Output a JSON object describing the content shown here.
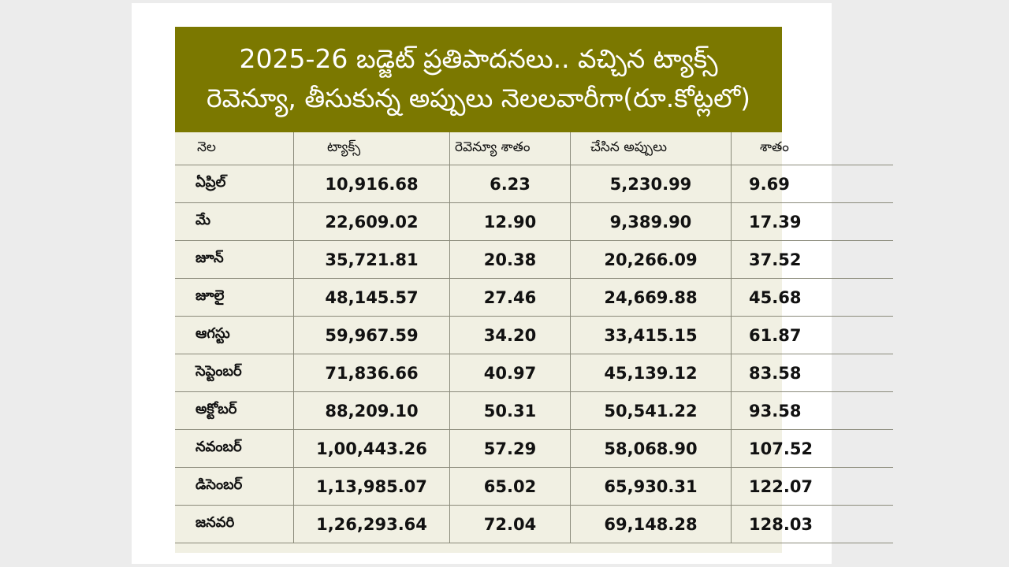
{
  "title": {
    "line1": "2025-26 బడ్జెట్ ప్రతిపాదనలు.. వచ్చిన ట్యాక్స్",
    "line2": "రెవెన్యూ, తీసుకున్న అప్పులు నెలలవారీగా(రూ.కోట్లలో)"
  },
  "headers": {
    "month": "నెల",
    "tax": "ట్యాక్స్",
    "revenue_pct": "రెవెన్యూ శాతం",
    "loans": "చేసిన అప్పులు",
    "pct": "శాతం"
  },
  "rows": [
    {
      "month": "ఏప్రిల్",
      "tax": "10,916.68",
      "revenue_pct": "6.23",
      "loans": "5,230.99",
      "pct": "9.69"
    },
    {
      "month": "మే",
      "tax": "22,609.02",
      "revenue_pct": "12.90",
      "loans": "9,389.90",
      "pct": "17.39"
    },
    {
      "month": "జూన్",
      "tax": "35,721.81",
      "revenue_pct": "20.38",
      "loans": "20,266.09",
      "pct": "37.52"
    },
    {
      "month": "జూలై",
      "tax": "48,145.57",
      "revenue_pct": "27.46",
      "loans": "24,669.88",
      "pct": "45.68"
    },
    {
      "month": "ఆగస్టు",
      "tax": "59,967.59",
      "revenue_pct": "34.20",
      "loans": "33,415.15",
      "pct": "61.87"
    },
    {
      "month": "సెప్టెంబర్",
      "tax": "71,836.66",
      "revenue_pct": "40.97",
      "loans": "45,139.12",
      "pct": "83.58"
    },
    {
      "month": "అక్టోబర్",
      "tax": "88,209.10",
      "revenue_pct": "50.31",
      "loans": "50,541.22",
      "pct": "93.58"
    },
    {
      "month": "నవంబర్",
      "tax": "1,00,443.26",
      "revenue_pct": "57.29",
      "loans": "58,068.90",
      "pct": "107.52"
    },
    {
      "month": "డిసెంబర్",
      "tax": "1,13,985.07",
      "revenue_pct": "65.02",
      "loans": "65,930.31",
      "pct": "122.07"
    },
    {
      "month": "జనవరి",
      "tax": "1,26,293.64",
      "revenue_pct": "72.04",
      "loans": "69,148.28",
      "pct": "128.03"
    }
  ],
  "colors": {
    "title_bg": "#7b7800",
    "table_bg": "#f1f0e3",
    "rule": "#8a8a7a"
  }
}
